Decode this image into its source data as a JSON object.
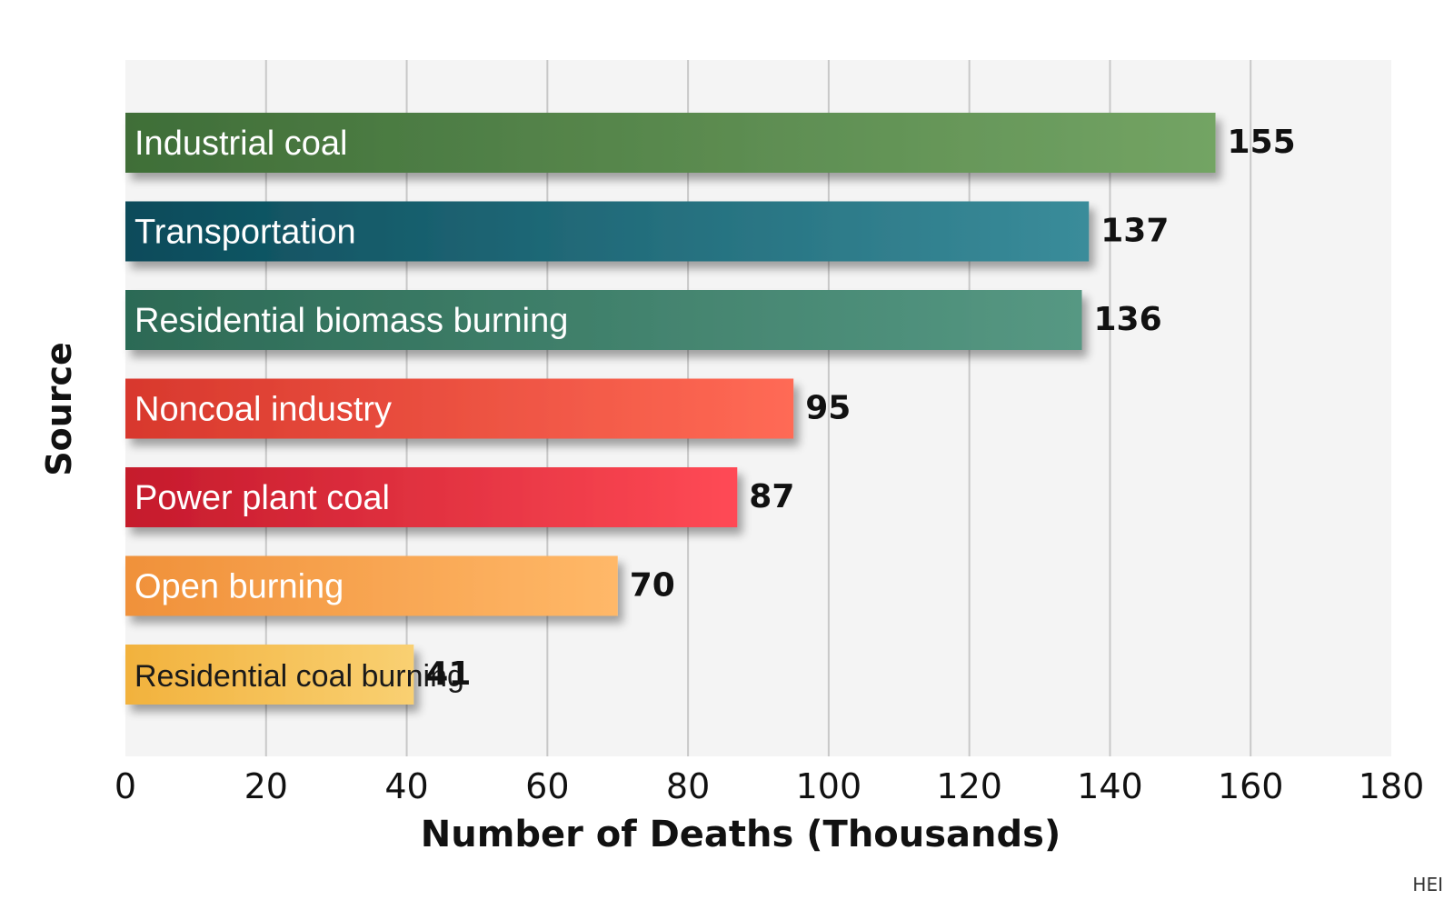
{
  "chart_data": {
    "type": "bar",
    "orientation": "horizontal",
    "categories": [
      "Industrial coal",
      "Transportation",
      "Residential biomass burning",
      "Noncoal industry",
      "Power plant coal",
      "Open burning",
      "Residential coal burning"
    ],
    "values": [
      155,
      137,
      136,
      95,
      87,
      70,
      41
    ],
    "value_labels": [
      "155",
      "137",
      "136",
      "95",
      "87",
      "70",
      "41"
    ],
    "bar_colors": [
      [
        "#3f6e38",
        "#73a464"
      ],
      [
        "#0a4b5a",
        "#3a8c9a"
      ],
      [
        "#2c6a55",
        "#569883"
      ],
      [
        "#d8382d",
        "#ff6a55"
      ],
      [
        "#c51a2c",
        "#ff4a55"
      ],
      [
        "#f0913a",
        "#ffb868"
      ],
      [
        "#f2b23d",
        "#f9d072"
      ]
    ],
    "label_colors": [
      "#ffffff",
      "#ffffff",
      "#ffffff",
      "#ffffff",
      "#ffffff",
      "#ffffff",
      "#1a1a1a"
    ],
    "xlabel": "Number of Deaths (Thousands)",
    "ylabel": "Source",
    "xlim": [
      0,
      180
    ],
    "xticks": [
      0,
      20,
      40,
      60,
      80,
      100,
      120,
      140,
      160,
      180
    ],
    "xtick_labels": [
      "0",
      "20",
      "40",
      "60",
      "80",
      "100",
      "120",
      "140",
      "160",
      "180"
    ],
    "grid": true,
    "plot_background": "#f4f4f4",
    "gridline_color": "#c8c8c8",
    "legend": "none"
  },
  "credit": "HEI"
}
